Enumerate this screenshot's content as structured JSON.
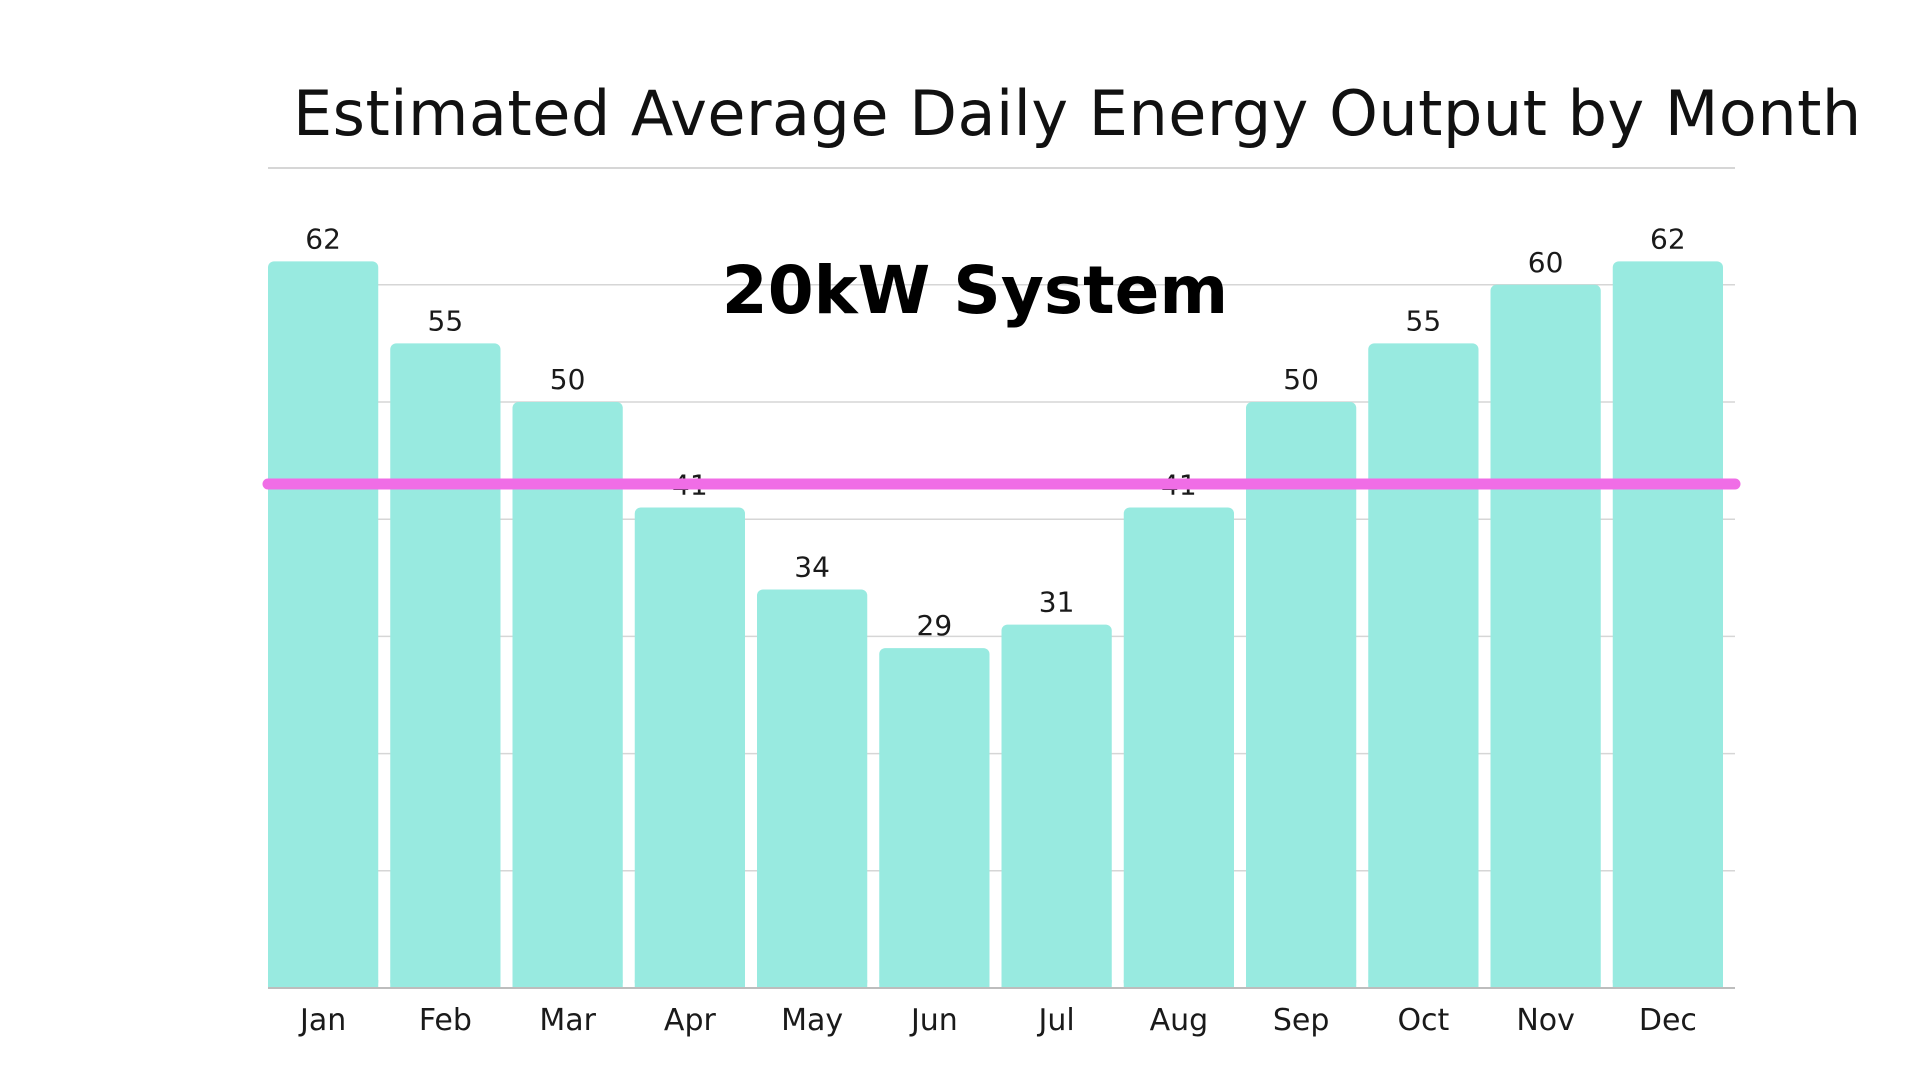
{
  "chart_data": {
    "type": "bar",
    "title": "Estimated Average Daily Energy Output by Month",
    "subtitle": "20kW System",
    "categories": [
      "Jan",
      "Feb",
      "Mar",
      "Apr",
      "May",
      "Jun",
      "Jul",
      "Aug",
      "Sep",
      "Oct",
      "Nov",
      "Dec"
    ],
    "series": [
      {
        "values": [
          62,
          55,
          50,
          41,
          34,
          29,
          31,
          41,
          50,
          55,
          60,
          62
        ]
      }
    ],
    "reference_line": {
      "value": 43
    },
    "xlabel": "",
    "ylabel": "",
    "ylim": [
      0,
      62
    ],
    "y_gridline_step": 10,
    "grid": true,
    "data_labels": true,
    "colors": {
      "bar": "#98EAE0",
      "reference_line": "#F06DE6",
      "gridline": "#D6D6D6",
      "text": "#111111"
    }
  }
}
